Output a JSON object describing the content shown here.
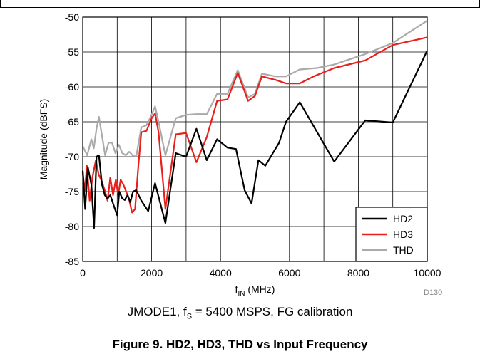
{
  "chart_data": {
    "type": "line",
    "xlabel": "f",
    "xlabel_sub": "IN",
    "xlabel_unit": " (MHz)",
    "ylabel": "Magnitude (dBFS)",
    "xlim": [
      0,
      10000
    ],
    "ylim": [
      -85,
      -50
    ],
    "xticks": [
      0,
      2000,
      4000,
      6000,
      8000,
      10000
    ],
    "yticks": [
      -85,
      -80,
      -75,
      -70,
      -65,
      -60,
      -55,
      -50
    ],
    "grid": true,
    "legend_position": "bottom-right",
    "series": [
      {
        "name": "HD2",
        "color": "#000000",
        "points": [
          [
            0,
            -72
          ],
          [
            70,
            -77.5
          ],
          [
            150,
            -71.5
          ],
          [
            250,
            -74
          ],
          [
            330,
            -80.2
          ],
          [
            400,
            -70
          ],
          [
            470,
            -69.8
          ],
          [
            560,
            -74
          ],
          [
            640,
            -75.5
          ],
          [
            720,
            -76
          ],
          [
            800,
            -75.5
          ],
          [
            900,
            -77
          ],
          [
            1000,
            -78.4
          ],
          [
            1060,
            -75
          ],
          [
            1150,
            -76
          ],
          [
            1220,
            -76.2
          ],
          [
            1300,
            -75.5
          ],
          [
            1380,
            -76.5
          ],
          [
            1460,
            -75
          ],
          [
            1550,
            -74.8
          ],
          [
            1700,
            -76.3
          ],
          [
            1900,
            -77.8
          ],
          [
            2100,
            -73.8
          ],
          [
            2400,
            -79.5
          ],
          [
            2700,
            -69.5
          ],
          [
            3000,
            -70
          ],
          [
            3300,
            -66
          ],
          [
            3600,
            -70.5
          ],
          [
            3900,
            -67.5
          ],
          [
            4200,
            -68.7
          ],
          [
            4450,
            -68.9
          ],
          [
            4700,
            -74.8
          ],
          [
            4900,
            -76.7
          ],
          [
            5100,
            -70.5
          ],
          [
            5300,
            -71.3
          ],
          [
            5700,
            -68
          ],
          [
            5900,
            -65
          ],
          [
            6300,
            -62.2
          ],
          [
            7300,
            -70.7
          ],
          [
            8200,
            -64.8
          ],
          [
            9000,
            -65.1
          ],
          [
            10000,
            -54.8
          ]
        ]
      },
      {
        "name": "HD3",
        "color": "#e8201c",
        "points": [
          [
            0,
            -72.2
          ],
          [
            60,
            -75
          ],
          [
            120,
            -71.3
          ],
          [
            200,
            -76.3
          ],
          [
            280,
            -73
          ],
          [
            380,
            -70.5
          ],
          [
            460,
            -72.5
          ],
          [
            550,
            -73.5
          ],
          [
            650,
            -75
          ],
          [
            720,
            -76.3
          ],
          [
            800,
            -73
          ],
          [
            880,
            -75.5
          ],
          [
            960,
            -73.3
          ],
          [
            1030,
            -75.5
          ],
          [
            1100,
            -73.3
          ],
          [
            1180,
            -74
          ],
          [
            1260,
            -75
          ],
          [
            1340,
            -76
          ],
          [
            1430,
            -78
          ],
          [
            1520,
            -77.5
          ],
          [
            1620,
            -71
          ],
          [
            1700,
            -66.5
          ],
          [
            1850,
            -66.3
          ],
          [
            2000,
            -64.5
          ],
          [
            2100,
            -63.8
          ],
          [
            2200,
            -66.5
          ],
          [
            2400,
            -77.5
          ],
          [
            2700,
            -66.8
          ],
          [
            3000,
            -66.6
          ],
          [
            3300,
            -70.8
          ],
          [
            3600,
            -67.2
          ],
          [
            3900,
            -62
          ],
          [
            4200,
            -61.8
          ],
          [
            4500,
            -58
          ],
          [
            4800,
            -62
          ],
          [
            5000,
            -61.3
          ],
          [
            5200,
            -58.5
          ],
          [
            5600,
            -59
          ],
          [
            5900,
            -59.5
          ],
          [
            6300,
            -59.5
          ],
          [
            6700,
            -58.5
          ],
          [
            7300,
            -57.3
          ],
          [
            8200,
            -56.2
          ],
          [
            9000,
            -54
          ],
          [
            10000,
            -52.9
          ]
        ]
      },
      {
        "name": "THD",
        "color": "#aaaaaa",
        "points": [
          [
            0,
            -68.5
          ],
          [
            130,
            -69.8
          ],
          [
            250,
            -67.5
          ],
          [
            320,
            -68.8
          ],
          [
            400,
            -66
          ],
          [
            470,
            -64.3
          ],
          [
            560,
            -67
          ],
          [
            650,
            -69.8
          ],
          [
            750,
            -68
          ],
          [
            850,
            -68
          ],
          [
            950,
            -69.5
          ],
          [
            1050,
            -68.3
          ],
          [
            1150,
            -69.5
          ],
          [
            1250,
            -69.8
          ],
          [
            1350,
            -69.3
          ],
          [
            1450,
            -69.8
          ],
          [
            1550,
            -70
          ],
          [
            1700,
            -65.8
          ],
          [
            1850,
            -65.5
          ],
          [
            2000,
            -64
          ],
          [
            2100,
            -62.8
          ],
          [
            2200,
            -65
          ],
          [
            2400,
            -69.8
          ],
          [
            2700,
            -64.5
          ],
          [
            3000,
            -64
          ],
          [
            3300,
            -63.9
          ],
          [
            3600,
            -63.9
          ],
          [
            3900,
            -61
          ],
          [
            4200,
            -61
          ],
          [
            4500,
            -57.6
          ],
          [
            4800,
            -61.5
          ],
          [
            5000,
            -61
          ],
          [
            5200,
            -58.1
          ],
          [
            5600,
            -58.5
          ],
          [
            5900,
            -58.5
          ],
          [
            6300,
            -57.5
          ],
          [
            6800,
            -57.3
          ],
          [
            7300,
            -56.8
          ],
          [
            8200,
            -55.3
          ],
          [
            9000,
            -53.7
          ],
          [
            10000,
            -50.5
          ]
        ]
      }
    ]
  },
  "caption": {
    "subtitle_prefix": "JMODE1, f",
    "subtitle_sub": "S",
    "subtitle_suffix": " = 5400 MSPS, FG calibration",
    "figure_title": "Figure 9. HD2, HD3, THD vs Input Frequency",
    "code": "D130"
  }
}
